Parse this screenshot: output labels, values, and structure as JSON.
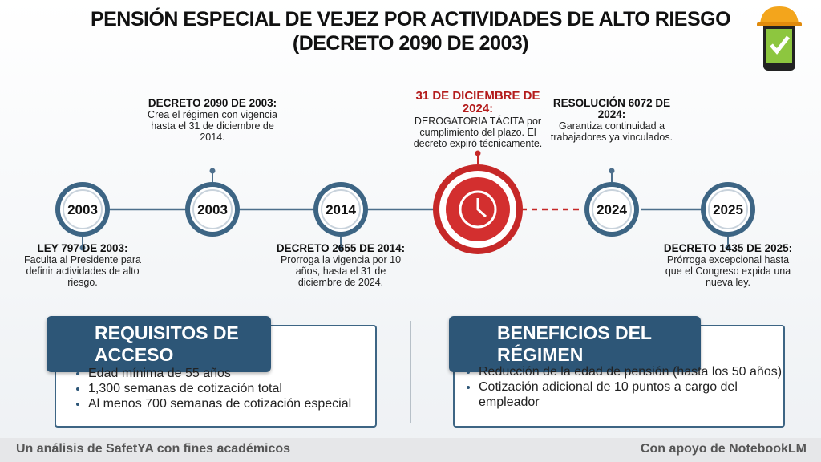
{
  "header": {
    "title_lines": [
      "PENSIÓN ESPECIAL DE VEJEZ POR ACTIVIDADES DE ALTO RIESGO",
      "(DECRETO 2090 DE 2003)"
    ]
  },
  "timeline": {
    "nodes": [
      {
        "year": "2003",
        "heading": "LEY 797 DE 2003:",
        "text": "Faculta al Presidente para definir actividades de alto riesgo."
      },
      {
        "year": "2003",
        "heading": "DECRETO 2090 DE 2003:",
        "text": "Crea el régimen con vigencia hasta el 31 de diciembre de 2014."
      },
      {
        "year": "2014",
        "heading": "DECRETO 2655 DE 2014:",
        "text": "Prorroga la vigencia por 10 años, hasta el 31 de diciembre de 2024."
      },
      {
        "heading": "31 DE DICIEMBRE DE 2024:",
        "text": "DEROGATORIA TÁCITA por cumplimiento del plazo. El decreto expiró técnicamente."
      },
      {
        "year": "2024",
        "heading": "RESOLUCIÓN 6072 DE 2024:",
        "text": "Garantiza continuidad a trabajadores ya vinculados."
      },
      {
        "year": "2025",
        "heading": "DECRETO 1435 DE 2025:",
        "text": "Prórroga excepcional hasta que el Congreso expida una nueva ley."
      }
    ]
  },
  "panels": [
    {
      "title": "REQUISITOS DE ACCESO",
      "items": [
        "Edad mínima de 55 años",
        "1,300 semanas de cotización total",
        "Al menos 700 semanas de cotización especial"
      ]
    },
    {
      "title": "BENEFICIOS DEL RÉGIMEN",
      "items": [
        "Reducción de la edad de pensión (hasta los 50 años)",
        "Cotización adicional de 10 puntos a cargo del empleador"
      ]
    }
  ],
  "footer": {
    "left": "Un análisis de SafetYA con fines académicos",
    "right": "Con apoyo de NotebookLM"
  }
}
